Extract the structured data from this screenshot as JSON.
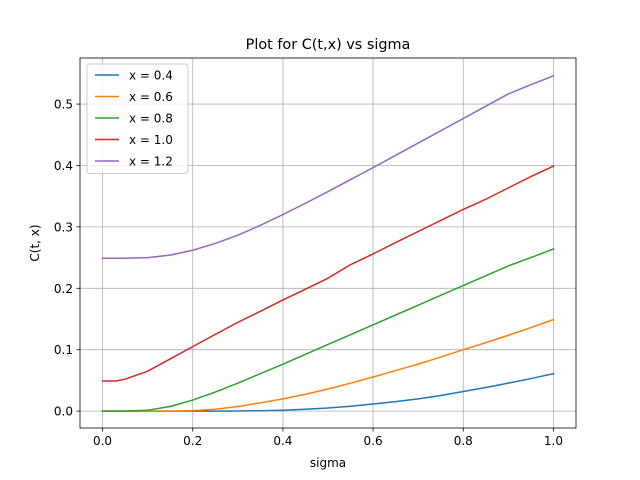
{
  "chart_data": {
    "type": "line",
    "title": "Plot for C(t,x) vs sigma",
    "xlabel": "sigma",
    "ylabel": "C(t, x)",
    "xlim": [
      -0.05,
      1.05
    ],
    "ylim": [
      -0.0275,
      0.575
    ],
    "xticks": [
      "0.0",
      "0.2",
      "0.4",
      "0.6",
      "0.8",
      "1.0"
    ],
    "yticks": [
      "0.0",
      "0.1",
      "0.2",
      "0.3",
      "0.4",
      "0.5"
    ],
    "grid": true,
    "legend_position": "upper-left",
    "x": [
      0.0,
      0.03,
      0.05,
      0.1,
      0.15,
      0.2,
      0.25,
      0.3,
      0.35,
      0.4,
      0.45,
      0.5,
      0.55,
      0.6,
      0.65,
      0.7,
      0.75,
      0.8,
      0.85,
      0.9,
      0.95,
      1.0
    ],
    "series": [
      {
        "name": "x = 0.4",
        "color": "#1f77b4",
        "values": [
          0.0,
          0.0,
          0.0,
          0.0,
          0.0,
          0.0,
          0.0,
          0.0002,
          0.0006,
          0.0015,
          0.003,
          0.005,
          0.008,
          0.0115,
          0.0155,
          0.02,
          0.0255,
          0.032,
          0.0385,
          0.0455,
          0.053,
          0.061
        ]
      },
      {
        "name": "x = 0.6",
        "color": "#ff7f0e",
        "values": [
          0.0,
          0.0,
          0.0,
          0.0,
          0.0,
          0.0008,
          0.003,
          0.0075,
          0.0135,
          0.02,
          0.0275,
          0.036,
          0.0455,
          0.0555,
          0.066,
          0.0765,
          0.088,
          0.1,
          0.1115,
          0.1235,
          0.136,
          0.149
        ]
      },
      {
        "name": "x = 0.8",
        "color": "#2ca02c",
        "values": [
          0.0,
          0.0,
          0.0,
          0.0015,
          0.0075,
          0.018,
          0.031,
          0.0455,
          0.061,
          0.0765,
          0.0925,
          0.1085,
          0.1245,
          0.1405,
          0.1565,
          0.1725,
          0.1885,
          0.2045,
          0.2205,
          0.2365,
          0.25,
          0.264
        ]
      },
      {
        "name": "x = 1.0",
        "color": "#d62728",
        "values": [
          0.049,
          0.049,
          0.052,
          0.065,
          0.085,
          0.105,
          0.125,
          0.1445,
          0.1625,
          0.181,
          0.1985,
          0.2165,
          0.2385,
          0.256,
          0.2745,
          0.2925,
          0.3105,
          0.3285,
          0.345,
          0.3635,
          0.382,
          0.399
        ]
      },
      {
        "name": "x = 1.2",
        "color": "#9467bd",
        "values": [
          0.249,
          0.249,
          0.249,
          0.25,
          0.254,
          0.262,
          0.273,
          0.2865,
          0.3025,
          0.32,
          0.3385,
          0.3575,
          0.377,
          0.3965,
          0.4165,
          0.4365,
          0.4565,
          0.4765,
          0.4965,
          0.5165,
          0.5315,
          0.546
        ]
      }
    ]
  }
}
